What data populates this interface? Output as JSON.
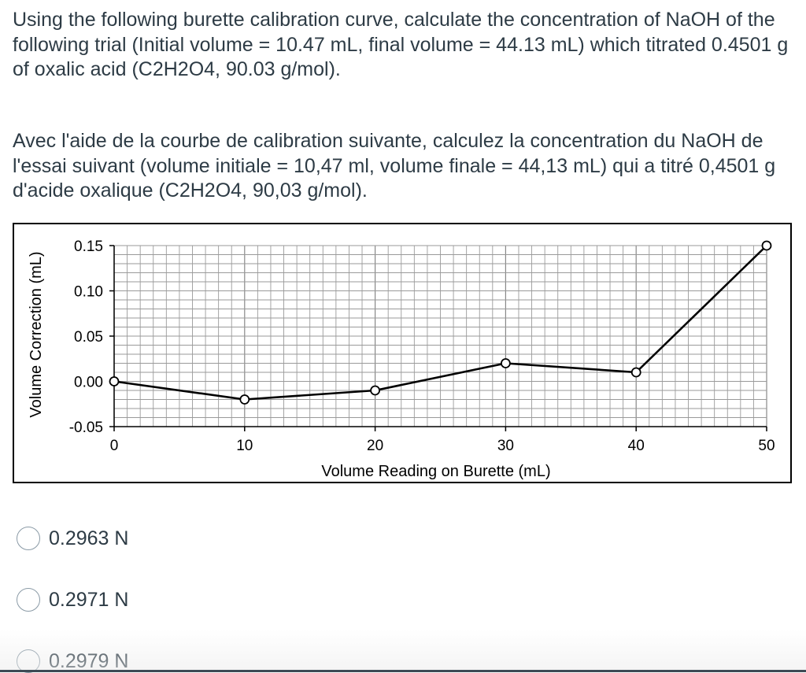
{
  "question": {
    "english": "Using the following burette calibration curve, calculate the concentration of NaOH of the following trial (Initial volume = 10.47 mL, final volume = 44.13 mL) which titrated 0.4501 g of oxalic acid (C2H2O4, 90.03 g/mol).",
    "french": "Avec l'aide de la courbe de calibration suivante, calculez la concentration du NaOH de l'essai suivant (volume initiale = 10,47 ml, volume finale = 44,13 mL) qui a titré 0,4501 g d'acide oxalique (C2H2O4, 90,03 g/mol)."
  },
  "chart_data": {
    "type": "line",
    "title": "",
    "xlabel": "Volume Reading on Burette (mL)",
    "ylabel": "Volume Correction (mL)",
    "x": [
      0,
      10,
      20,
      30,
      40,
      50
    ],
    "series": [
      {
        "values": [
          0.0,
          -0.02,
          -0.01,
          0.02,
          0.01,
          0.15
        ]
      }
    ],
    "xlim": [
      0,
      50
    ],
    "ylim": [
      -0.05,
      0.15
    ],
    "xticks": [
      "0",
      "10",
      "20",
      "30",
      "40",
      "50"
    ],
    "yticks": [
      "0.15",
      "0.10",
      "0.05",
      "0.00",
      "-0.05"
    ],
    "grid": true,
    "marker": "open-circle",
    "line_color": "#000000"
  },
  "answers": [
    {
      "label": "0.2963 N"
    },
    {
      "label": "0.2971 N"
    },
    {
      "label": "0.2979 N"
    }
  ]
}
